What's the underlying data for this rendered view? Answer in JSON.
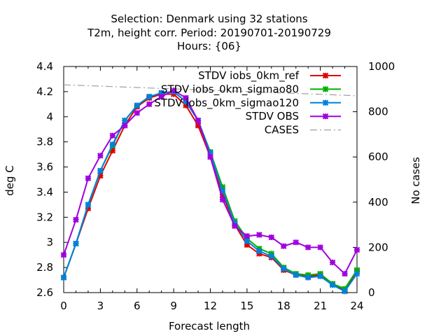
{
  "chart_data": {
    "type": "line",
    "title_lines": [
      "Selection: Denmark using    32 stations",
      "T2m, height corr.   Period: 20190701-20190729",
      "Hours: {06}"
    ],
    "xlabel": "Forecast length",
    "ylabel": "deg C",
    "y2label": "No cases",
    "xlim": [
      0,
      24
    ],
    "ylim": [
      2.6,
      4.4
    ],
    "y2lim": [
      0,
      1000
    ],
    "x_ticks": [
      "0",
      "3",
      "6",
      "9",
      "12",
      "15",
      "18",
      "21",
      "24"
    ],
    "y_ticks": [
      "2.6",
      "2.8",
      "3",
      "3.2",
      "3.4",
      "3.6",
      "3.8",
      "4",
      "4.2",
      "4.4"
    ],
    "y2_ticks": [
      "0",
      "200",
      "400",
      "600",
      "800",
      "1000"
    ],
    "grid": false,
    "legend_position": "top-right",
    "x": [
      0,
      1,
      2,
      3,
      4,
      5,
      6,
      7,
      8,
      9,
      10,
      11,
      12,
      13,
      14,
      15,
      16,
      17,
      18,
      19,
      20,
      21,
      22,
      23,
      24
    ],
    "series": [
      {
        "name": "STDV iobs_0km_ref",
        "color": "#e00000",
        "axis": "left",
        "values": [
          2.72,
          2.99,
          3.27,
          3.53,
          3.73,
          3.93,
          4.08,
          4.15,
          4.18,
          4.18,
          4.09,
          3.93,
          3.68,
          3.38,
          3.14,
          2.98,
          2.91,
          2.88,
          2.78,
          2.74,
          2.73,
          2.74,
          2.67,
          2.62,
          2.77
        ]
      },
      {
        "name": "STDV iobs_0km_sigmao80",
        "color": "#00b000",
        "axis": "left",
        "values": [
          2.72,
          2.99,
          3.3,
          3.57,
          3.77,
          3.97,
          4.09,
          4.16,
          4.19,
          4.2,
          4.12,
          3.97,
          3.72,
          3.44,
          3.17,
          3.03,
          2.95,
          2.91,
          2.8,
          2.75,
          2.74,
          2.75,
          2.67,
          2.63,
          2.78
        ]
      },
      {
        "name": "STDV iobs_0km_sigmao120",
        "color": "#0080e0",
        "axis": "left",
        "values": [
          2.72,
          2.99,
          3.3,
          3.57,
          3.78,
          3.97,
          4.09,
          4.16,
          4.19,
          4.2,
          4.12,
          3.97,
          3.71,
          3.41,
          3.15,
          3.01,
          2.93,
          2.89,
          2.79,
          2.74,
          2.72,
          2.73,
          2.66,
          2.61,
          2.75
        ]
      },
      {
        "name": "STDV OBS",
        "color": "#a000e0",
        "axis": "left",
        "values": [
          2.9,
          3.18,
          3.51,
          3.69,
          3.85,
          3.93,
          4.03,
          4.1,
          4.16,
          4.21,
          4.15,
          3.97,
          3.68,
          3.34,
          3.13,
          3.05,
          3.06,
          3.04,
          2.97,
          3.0,
          2.96,
          2.96,
          2.84,
          2.75,
          2.94
        ]
      },
      {
        "name": "CASES",
        "color": "#a0a0a0",
        "axis": "right",
        "values": [
          919,
          917,
          915,
          913,
          911,
          909,
          907,
          905,
          903,
          901,
          899,
          897,
          895,
          893,
          891,
          889,
          887,
          885,
          883,
          881,
          879,
          877,
          875,
          873,
          870
        ]
      }
    ]
  }
}
